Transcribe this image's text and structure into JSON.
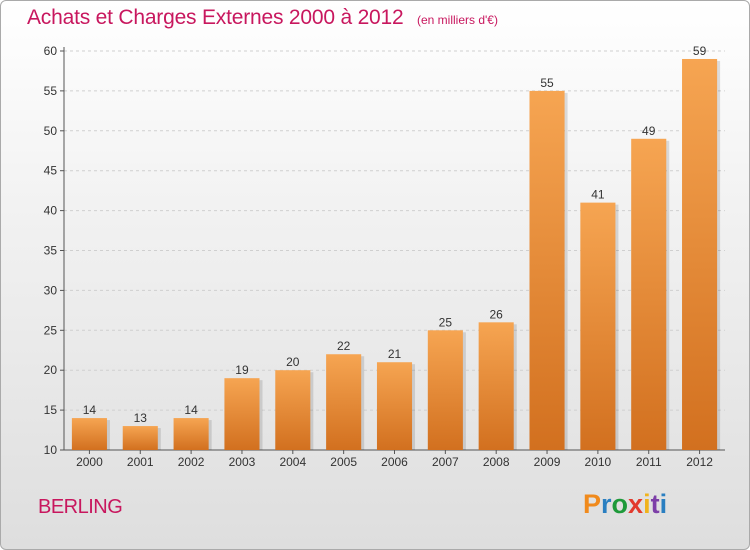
{
  "chart_data": {
    "type": "bar",
    "title": "Achats et Charges Externes 2000 à 2012",
    "subtitle": "(en milliers d'€)",
    "categories": [
      "2000",
      "2001",
      "2002",
      "2003",
      "2004",
      "2005",
      "2006",
      "2007",
      "2008",
      "2009",
      "2010",
      "2011",
      "2012"
    ],
    "values": [
      14,
      13,
      14,
      19,
      20,
      22,
      21,
      25,
      26,
      55,
      41,
      49,
      59
    ],
    "ylim": [
      10,
      60
    ],
    "yticks": [
      10,
      15,
      20,
      25,
      30,
      35,
      40,
      45,
      50,
      55,
      60
    ],
    "grid": true,
    "bar_color_top": "#f6a552",
    "bar_color_bottom": "#d2701f"
  },
  "footer": {
    "commune": "BERLING",
    "logo_letters": [
      "P",
      "r",
      "o",
      "x",
      "i",
      "t",
      "i"
    ],
    "logo_colors": [
      "#f08a1c",
      "#2a7fc1",
      "#1e9a3a",
      "#e23a2d",
      "#f0b31c",
      "#7d3fa8",
      "#2a7fc1"
    ]
  }
}
